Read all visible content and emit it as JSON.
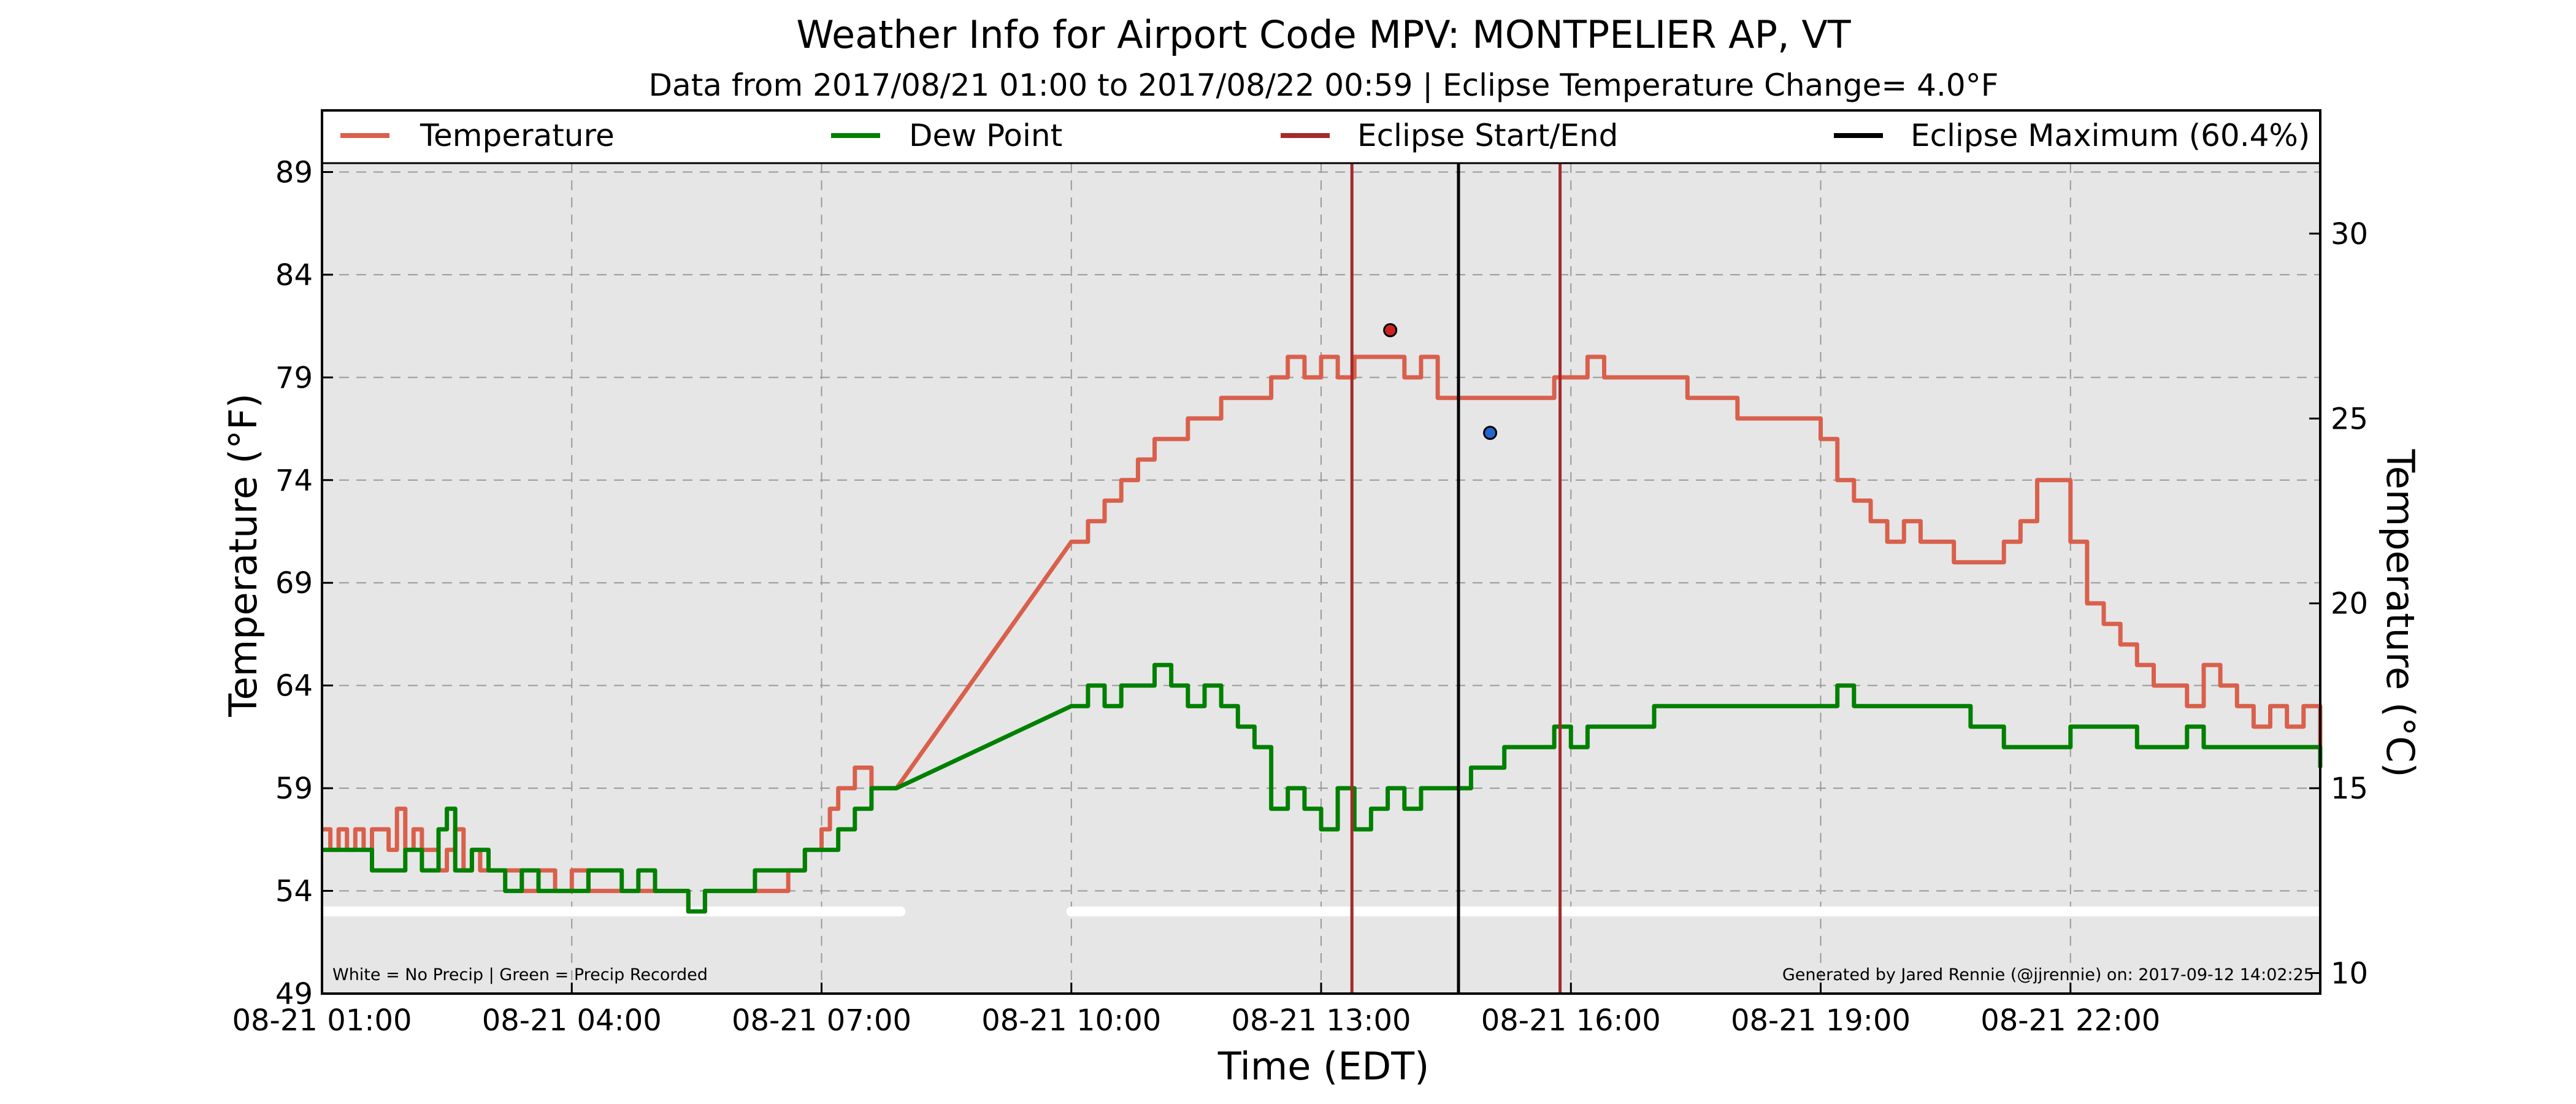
{
  "chart_data": {
    "type": "line",
    "title": "Weather Info for Airport Code MPV: MONTPELIER AP, VT",
    "subtitle": "Data from 2017/08/21 01:00 to 2017/08/22 00:59 | Eclipse Temperature Change= 4.0°F",
    "xlabel": "Time (EDT)",
    "ylabel": "Temperature (°F)",
    "ylabel_right": "Temperature (°C)",
    "xlim": [
      1,
      25
    ],
    "ylim": [
      49,
      92
    ],
    "ylim_right_celsius": [
      9.44,
      33.33
    ],
    "x_ticks": [
      1,
      4,
      7,
      10,
      13,
      16,
      19,
      22
    ],
    "x_tick_labels": [
      "08-21 01:00",
      "08-21 04:00",
      "08-21 07:00",
      "08-21 10:00",
      "08-21 13:00",
      "08-21 16:00",
      "08-21 19:00",
      "08-21 22:00"
    ],
    "y_ticks": [
      49,
      54,
      59,
      64,
      69,
      74,
      79,
      84,
      89
    ],
    "y_ticks_right": [
      10,
      15,
      20,
      25,
      30
    ],
    "grid": true,
    "legend_position": "top",
    "series": [
      {
        "name": "Temperature",
        "color": "#d9604c",
        "points": [
          [
            1.0,
            57
          ],
          [
            1.1,
            56
          ],
          [
            1.2,
            57
          ],
          [
            1.3,
            56
          ],
          [
            1.4,
            57
          ],
          [
            1.5,
            56
          ],
          [
            1.6,
            57
          ],
          [
            1.7,
            57
          ],
          [
            1.8,
            56
          ],
          [
            1.9,
            58
          ],
          [
            2.0,
            56
          ],
          [
            2.1,
            57
          ],
          [
            2.2,
            56
          ],
          [
            2.3,
            56
          ],
          [
            2.4,
            55
          ],
          [
            2.5,
            56
          ],
          [
            2.6,
            57
          ],
          [
            2.7,
            55
          ],
          [
            2.8,
            56
          ],
          [
            2.9,
            55
          ],
          [
            3.0,
            55
          ],
          [
            3.2,
            55
          ],
          [
            3.4,
            54
          ],
          [
            3.6,
            55
          ],
          [
            3.8,
            54
          ],
          [
            4.0,
            55
          ],
          [
            4.2,
            54
          ],
          [
            4.4,
            54
          ],
          [
            4.6,
            54
          ],
          [
            4.8,
            54
          ],
          [
            5.0,
            54
          ],
          [
            5.2,
            54
          ],
          [
            5.4,
            53
          ],
          [
            5.6,
            54
          ],
          [
            5.8,
            54
          ],
          [
            6.0,
            54
          ],
          [
            6.2,
            54
          ],
          [
            6.4,
            54
          ],
          [
            6.6,
            55
          ],
          [
            6.8,
            56
          ],
          [
            7.0,
            57
          ],
          [
            7.1,
            58
          ],
          [
            7.2,
            59
          ],
          [
            7.4,
            60
          ],
          [
            7.6,
            59
          ],
          [
            7.9,
            59
          ],
          [
            10.0,
            71
          ],
          [
            10.2,
            72
          ],
          [
            10.4,
            73
          ],
          [
            10.6,
            74
          ],
          [
            10.8,
            75
          ],
          [
            11.0,
            76
          ],
          [
            11.2,
            76
          ],
          [
            11.4,
            77
          ],
          [
            11.6,
            77
          ],
          [
            11.8,
            78
          ],
          [
            12.0,
            78
          ],
          [
            12.2,
            78
          ],
          [
            12.4,
            79
          ],
          [
            12.6,
            80
          ],
          [
            12.8,
            79
          ],
          [
            13.0,
            80
          ],
          [
            13.2,
            79
          ],
          [
            13.4,
            80
          ],
          [
            13.6,
            80
          ],
          [
            13.8,
            80
          ],
          [
            14.0,
            79
          ],
          [
            14.2,
            80
          ],
          [
            14.4,
            78
          ],
          [
            14.6,
            78
          ],
          [
            14.8,
            78
          ],
          [
            15.0,
            78
          ],
          [
            15.2,
            78
          ],
          [
            15.4,
            78
          ],
          [
            15.6,
            78
          ],
          [
            15.8,
            79
          ],
          [
            16.0,
            79
          ],
          [
            16.2,
            80
          ],
          [
            16.4,
            79
          ],
          [
            16.6,
            79
          ],
          [
            16.8,
            79
          ],
          [
            17.0,
            79
          ],
          [
            17.2,
            79
          ],
          [
            17.4,
            78
          ],
          [
            17.6,
            78
          ],
          [
            17.8,
            78
          ],
          [
            18.0,
            77
          ],
          [
            18.2,
            77
          ],
          [
            18.4,
            77
          ],
          [
            18.6,
            77
          ],
          [
            18.8,
            77
          ],
          [
            19.0,
            76
          ],
          [
            19.2,
            74
          ],
          [
            19.4,
            73
          ],
          [
            19.6,
            72
          ],
          [
            19.8,
            71
          ],
          [
            20.0,
            72
          ],
          [
            20.2,
            71
          ],
          [
            20.4,
            71
          ],
          [
            20.6,
            70
          ],
          [
            20.8,
            70
          ],
          [
            21.0,
            70
          ],
          [
            21.2,
            71
          ],
          [
            21.4,
            72
          ],
          [
            21.6,
            74
          ],
          [
            21.8,
            74
          ],
          [
            22.0,
            71
          ],
          [
            22.2,
            68
          ],
          [
            22.4,
            67
          ],
          [
            22.6,
            66
          ],
          [
            22.8,
            65
          ],
          [
            23.0,
            64
          ],
          [
            23.2,
            64
          ],
          [
            23.4,
            63
          ],
          [
            23.6,
            65
          ],
          [
            23.8,
            64
          ],
          [
            24.0,
            63
          ],
          [
            24.2,
            62
          ],
          [
            24.4,
            63
          ],
          [
            24.6,
            62
          ],
          [
            24.8,
            63
          ],
          [
            25.0,
            61
          ]
        ]
      },
      {
        "name": "Dew Point",
        "color": "#008000",
        "points": [
          [
            1.0,
            56
          ],
          [
            1.2,
            56
          ],
          [
            1.4,
            56
          ],
          [
            1.6,
            55
          ],
          [
            1.8,
            55
          ],
          [
            2.0,
            56
          ],
          [
            2.2,
            55
          ],
          [
            2.4,
            57
          ],
          [
            2.5,
            58
          ],
          [
            2.6,
            55
          ],
          [
            2.8,
            56
          ],
          [
            3.0,
            55
          ],
          [
            3.2,
            54
          ],
          [
            3.4,
            55
          ],
          [
            3.6,
            54
          ],
          [
            3.8,
            54
          ],
          [
            4.0,
            54
          ],
          [
            4.2,
            55
          ],
          [
            4.4,
            55
          ],
          [
            4.6,
            54
          ],
          [
            4.8,
            55
          ],
          [
            5.0,
            54
          ],
          [
            5.2,
            54
          ],
          [
            5.4,
            53
          ],
          [
            5.6,
            54
          ],
          [
            5.8,
            54
          ],
          [
            6.0,
            54
          ],
          [
            6.2,
            55
          ],
          [
            6.4,
            55
          ],
          [
            6.6,
            55
          ],
          [
            6.8,
            56
          ],
          [
            7.0,
            56
          ],
          [
            7.2,
            57
          ],
          [
            7.4,
            58
          ],
          [
            7.6,
            59
          ],
          [
            7.9,
            59
          ],
          [
            10.0,
            63
          ],
          [
            10.2,
            64
          ],
          [
            10.4,
            63
          ],
          [
            10.6,
            64
          ],
          [
            10.8,
            64
          ],
          [
            11.0,
            65
          ],
          [
            11.2,
            64
          ],
          [
            11.4,
            63
          ],
          [
            11.6,
            64
          ],
          [
            11.8,
            63
          ],
          [
            12.0,
            62
          ],
          [
            12.2,
            61
          ],
          [
            12.4,
            58
          ],
          [
            12.6,
            59
          ],
          [
            12.8,
            58
          ],
          [
            13.0,
            57
          ],
          [
            13.2,
            59
          ],
          [
            13.4,
            57
          ],
          [
            13.6,
            58
          ],
          [
            13.8,
            59
          ],
          [
            14.0,
            58
          ],
          [
            14.2,
            59
          ],
          [
            14.4,
            59
          ],
          [
            14.6,
            59
          ],
          [
            14.8,
            60
          ],
          [
            15.0,
            60
          ],
          [
            15.2,
            61
          ],
          [
            15.4,
            61
          ],
          [
            15.6,
            61
          ],
          [
            15.8,
            62
          ],
          [
            16.0,
            61
          ],
          [
            16.2,
            62
          ],
          [
            16.4,
            62
          ],
          [
            16.6,
            62
          ],
          [
            16.8,
            62
          ],
          [
            17.0,
            63
          ],
          [
            17.2,
            63
          ],
          [
            17.4,
            63
          ],
          [
            17.6,
            63
          ],
          [
            17.8,
            63
          ],
          [
            18.0,
            63
          ],
          [
            18.2,
            63
          ],
          [
            18.4,
            63
          ],
          [
            18.6,
            63
          ],
          [
            18.8,
            63
          ],
          [
            19.0,
            63
          ],
          [
            19.2,
            64
          ],
          [
            19.4,
            63
          ],
          [
            19.6,
            63
          ],
          [
            19.8,
            63
          ],
          [
            20.0,
            63
          ],
          [
            20.2,
            63
          ],
          [
            20.4,
            63
          ],
          [
            20.6,
            63
          ],
          [
            20.8,
            62
          ],
          [
            21.0,
            62
          ],
          [
            21.2,
            61
          ],
          [
            21.4,
            61
          ],
          [
            21.6,
            61
          ],
          [
            21.8,
            61
          ],
          [
            22.0,
            62
          ],
          [
            22.2,
            62
          ],
          [
            22.4,
            62
          ],
          [
            22.6,
            62
          ],
          [
            22.8,
            61
          ],
          [
            23.0,
            61
          ],
          [
            23.2,
            61
          ],
          [
            23.4,
            62
          ],
          [
            23.6,
            61
          ],
          [
            23.8,
            61
          ],
          [
            24.0,
            61
          ],
          [
            24.2,
            61
          ],
          [
            24.4,
            61
          ],
          [
            24.6,
            61
          ],
          [
            24.8,
            61
          ],
          [
            25.0,
            60
          ]
        ]
      }
    ],
    "vertical_lines": [
      {
        "name": "Eclipse Start/End",
        "x": 13.37,
        "color": "#a52a2a"
      },
      {
        "name": "Eclipse Maximum (60.4%)",
        "x": 14.65,
        "color": "#000000"
      },
      {
        "name": "Eclipse Start/End",
        "x": 15.87,
        "color": "#a52a2a"
      }
    ],
    "markers": [
      {
        "x": 13.83,
        "y": 81.3,
        "color": "#cc2222"
      },
      {
        "x": 15.03,
        "y": 76.3,
        "color": "#2266cc"
      }
    ],
    "precip_strip": {
      "y": 53.0,
      "segments": [
        [
          1.0,
          7.95
        ],
        [
          10.0,
          25.0
        ]
      ]
    },
    "footnote_left": "White = No Precip | Green = Precip Recorded",
    "footnote_right": "Generated by Jared Rennie (@jjrennie) on: 2017-09-12 14:02:25"
  }
}
